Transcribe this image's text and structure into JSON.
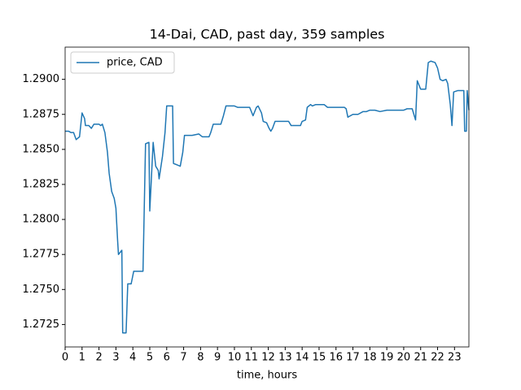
{
  "chart_data": {
    "type": "line",
    "title": "14-Dai, CAD, past day, 359 samples",
    "x_label": "time, hours",
    "x": [
      0,
      0.2,
      0.35,
      0.5,
      0.65,
      0.85,
      1.0,
      1.15,
      1.2,
      1.4,
      1.55,
      1.7,
      2.0,
      2.1,
      2.2,
      2.35,
      2.5,
      2.6,
      2.75,
      2.9,
      3.0,
      3.1,
      3.15,
      3.35,
      3.4,
      3.6,
      3.7,
      3.9,
      4.05,
      4.6,
      4.75,
      4.95,
      5.0,
      5.2,
      5.35,
      5.5,
      5.55,
      5.75,
      5.9,
      6.0,
      6.35,
      6.4,
      6.6,
      6.8,
      6.95,
      7.05,
      7.5,
      7.9,
      8.1,
      8.5,
      8.6,
      8.75,
      9.2,
      9.35,
      9.5,
      10.0,
      10.2,
      10.9,
      11.1,
      11.3,
      11.4,
      11.6,
      11.7,
      11.9,
      12.05,
      12.15,
      12.25,
      12.4,
      13.2,
      13.35,
      13.9,
      14.0,
      14.2,
      14.3,
      14.5,
      14.6,
      14.8,
      15.3,
      15.5,
      16.0,
      16.5,
      16.6,
      16.7,
      17.0,
      17.3,
      17.6,
      17.8,
      18.0,
      18.3,
      18.6,
      19.0,
      19.5,
      20.0,
      20.2,
      20.5,
      20.7,
      20.8,
      21.0,
      21.3,
      21.45,
      21.6,
      21.85,
      22.0,
      22.15,
      22.3,
      22.5,
      22.6,
      22.75,
      22.85,
      22.95,
      23.2,
      23.55,
      23.6,
      23.7,
      23.75,
      23.85
    ],
    "series": [
      {
        "name": "price, CAD",
        "color": "#1f77b4",
        "values": [
          1.2863,
          1.2863,
          1.2862,
          1.2862,
          1.2857,
          1.2859,
          1.2876,
          1.2872,
          1.2867,
          1.2867,
          1.2865,
          1.2868,
          1.2868,
          1.2867,
          1.2868,
          1.2862,
          1.2848,
          1.2833,
          1.282,
          1.2815,
          1.2808,
          1.2785,
          1.2775,
          1.2778,
          1.2719,
          1.2719,
          1.2754,
          1.2754,
          1.2763,
          1.2763,
          1.2854,
          1.2855,
          1.2806,
          1.2855,
          1.2838,
          1.2835,
          1.2829,
          1.2845,
          1.2862,
          1.2881,
          1.2881,
          1.284,
          1.2839,
          1.2838,
          1.2848,
          1.286,
          1.286,
          1.2861,
          1.2859,
          1.2859,
          1.2862,
          1.2868,
          1.2868,
          1.2874,
          1.2881,
          1.2881,
          1.288,
          1.288,
          1.2874,
          1.288,
          1.2881,
          1.2876,
          1.287,
          1.2869,
          1.2865,
          1.2863,
          1.2865,
          1.287,
          1.287,
          1.2867,
          1.2867,
          1.287,
          1.2871,
          1.288,
          1.2882,
          1.2881,
          1.2882,
          1.2882,
          1.288,
          1.288,
          1.288,
          1.2879,
          1.2873,
          1.2875,
          1.2875,
          1.2877,
          1.2877,
          1.2878,
          1.2878,
          1.2877,
          1.2878,
          1.2878,
          1.2878,
          1.2879,
          1.2879,
          1.2871,
          1.2899,
          1.2893,
          1.2893,
          1.2912,
          1.2913,
          1.2912,
          1.2908,
          1.29,
          1.2899,
          1.29,
          1.2897,
          1.2882,
          1.2867,
          1.2891,
          1.2892,
          1.2892,
          1.2863,
          1.2863,
          1.2892,
          1.2878
        ]
      }
    ],
    "xlim": [
      0,
      23.85
    ],
    "ylim": [
      1.2709,
      1.2923
    ],
    "xticks": [
      0,
      1,
      2,
      3,
      4,
      5,
      6,
      7,
      8,
      9,
      10,
      11,
      12,
      13,
      14,
      15,
      16,
      17,
      18,
      19,
      20,
      21,
      22,
      23
    ],
    "yticks": [
      1.2725,
      {
        "value": 1.275,
        "label": "1.2750"
      },
      1.2775,
      {
        "value": 1.28,
        "label": "1.2800"
      },
      1.2825,
      {
        "value": 1.285,
        "label": "1.2850"
      },
      1.2875,
      {
        "value": 1.29,
        "label": "1.2900"
      }
    ],
    "legend": "upper left"
  }
}
